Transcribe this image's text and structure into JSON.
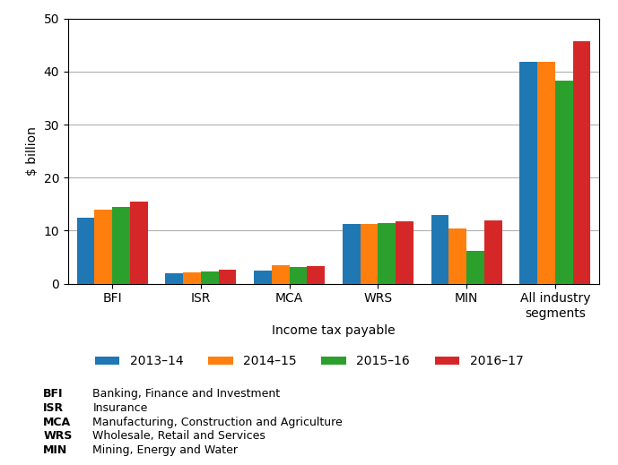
{
  "chart_data": {
    "type": "bar",
    "categories": [
      "BFI",
      "ISR",
      "MCA",
      "WRS",
      "MIN",
      "All industry\nsegments"
    ],
    "series": [
      {
        "name": "2013–14",
        "values": [
          12.5,
          2.0,
          2.5,
          11.2,
          13.0,
          41.8
        ]
      },
      {
        "name": "2014–15",
        "values": [
          14.0,
          2.2,
          3.5,
          11.3,
          10.4,
          41.8
        ]
      },
      {
        "name": "2015–16",
        "values": [
          14.5,
          2.3,
          3.1,
          11.4,
          6.2,
          38.3
        ]
      },
      {
        "name": "2016–17",
        "values": [
          15.5,
          2.6,
          3.3,
          11.8,
          12.0,
          45.8
        ]
      }
    ],
    "ylabel": "$ billion",
    "xlabel": "Income tax payable",
    "ylim": [
      0,
      50
    ],
    "yticks": [
      0,
      10,
      20,
      30,
      40,
      50
    ],
    "grid": true,
    "legend": "lower center",
    "annotations": [
      [
        "BFI",
        "Banking, Finance and Investment"
      ],
      [
        "ISR",
        "Insurance"
      ],
      [
        "MCA",
        "Manufacturing, Construction and Agriculture"
      ],
      [
        "WRS",
        "Wholesale, Retail and Services"
      ],
      [
        "MIN",
        "Mining, Energy and Water"
      ]
    ]
  }
}
